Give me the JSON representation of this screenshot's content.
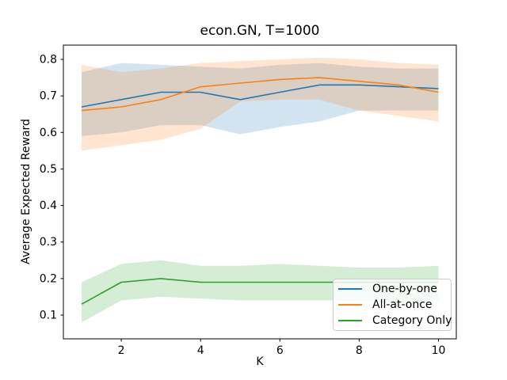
{
  "figure": {
    "kind": "matplotlib-line-figure",
    "background": "#ffffff",
    "spine_color": "#000000",
    "text_color": "#000000"
  },
  "chart_data": {
    "type": "line",
    "title": "econ.GN, T=1000",
    "xlabel": "K",
    "ylabel": "Average Expected Reward",
    "grid": false,
    "legend_position": "lower right",
    "x": [
      1,
      2,
      3,
      4,
      5,
      6,
      7,
      8,
      9,
      10
    ],
    "x_ticks": [
      2,
      4,
      6,
      8,
      10
    ],
    "y_ticks": [
      0.1,
      0.2,
      0.3,
      0.4,
      0.5,
      0.6,
      0.7,
      0.8
    ],
    "xlim": [
      0.54,
      10.45
    ],
    "ylim": [
      0.035,
      0.839
    ],
    "band_alpha": 0.2,
    "series": [
      {
        "name": "One-by-one",
        "color": "#1f77b4",
        "values": [
          0.67,
          0.69,
          0.71,
          0.71,
          0.69,
          0.71,
          0.73,
          0.73,
          0.725,
          0.72
        ],
        "band_lower": [
          0.59,
          0.6,
          0.62,
          0.62,
          0.595,
          0.615,
          0.63,
          0.66,
          0.66,
          0.66
        ],
        "band_upper": [
          0.765,
          0.79,
          0.785,
          0.78,
          0.775,
          0.785,
          0.79,
          0.78,
          0.775,
          0.775
        ]
      },
      {
        "name": "All-at-once",
        "color": "#ff7f0e",
        "values": [
          0.66,
          0.67,
          0.69,
          0.725,
          0.735,
          0.745,
          0.75,
          0.74,
          0.73,
          0.71
        ],
        "band_lower": [
          0.55,
          0.565,
          0.58,
          0.61,
          0.685,
          0.69,
          0.69,
          0.66,
          0.645,
          0.63
        ],
        "band_upper": [
          0.785,
          0.765,
          0.775,
          0.79,
          0.795,
          0.8,
          0.805,
          0.8,
          0.79,
          0.785
        ]
      },
      {
        "name": "Category Only",
        "color": "#2ca02c",
        "values": [
          0.13,
          0.19,
          0.2,
          0.19,
          0.19,
          0.19,
          0.19,
          0.19,
          0.19,
          0.19
        ],
        "band_lower": [
          0.08,
          0.14,
          0.15,
          0.145,
          0.14,
          0.14,
          0.14,
          0.14,
          0.135,
          0.14
        ],
        "band_upper": [
          0.19,
          0.24,
          0.25,
          0.235,
          0.235,
          0.24,
          0.235,
          0.23,
          0.23,
          0.235
        ]
      }
    ]
  }
}
